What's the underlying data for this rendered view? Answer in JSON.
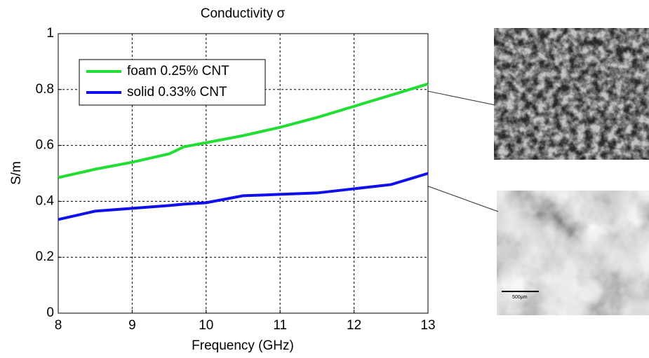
{
  "chart_data": {
    "type": "line",
    "title": "Conductivity σ",
    "xlabel": "Frequency (GHz)",
    "ylabel": "S/m",
    "x": [
      8,
      8.5,
      9,
      9.5,
      9.7,
      10,
      10.5,
      11,
      11.5,
      12,
      12.5,
      13
    ],
    "series": [
      {
        "name": "foam 0.25% CNT",
        "color": "#22dd33",
        "values": [
          0.485,
          0.515,
          0.54,
          0.57,
          0.595,
          0.61,
          0.635,
          0.665,
          0.7,
          0.74,
          0.78,
          0.82
        ]
      },
      {
        "name": "solid 0.33% CNT",
        "color": "#1010ee",
        "values": [
          0.335,
          0.365,
          0.375,
          0.385,
          0.39,
          0.395,
          0.42,
          0.425,
          0.43,
          0.445,
          0.46,
          0.5
        ]
      }
    ],
    "xlim": [
      8,
      13
    ],
    "xticks": [
      8,
      9,
      10,
      11,
      12,
      13
    ],
    "ylim": [
      0,
      1
    ],
    "yticks": [
      0,
      0.2,
      0.4,
      0.6,
      0.8,
      1
    ],
    "grid": true,
    "legend": "upper left"
  },
  "inset_scale_label": "500μm"
}
